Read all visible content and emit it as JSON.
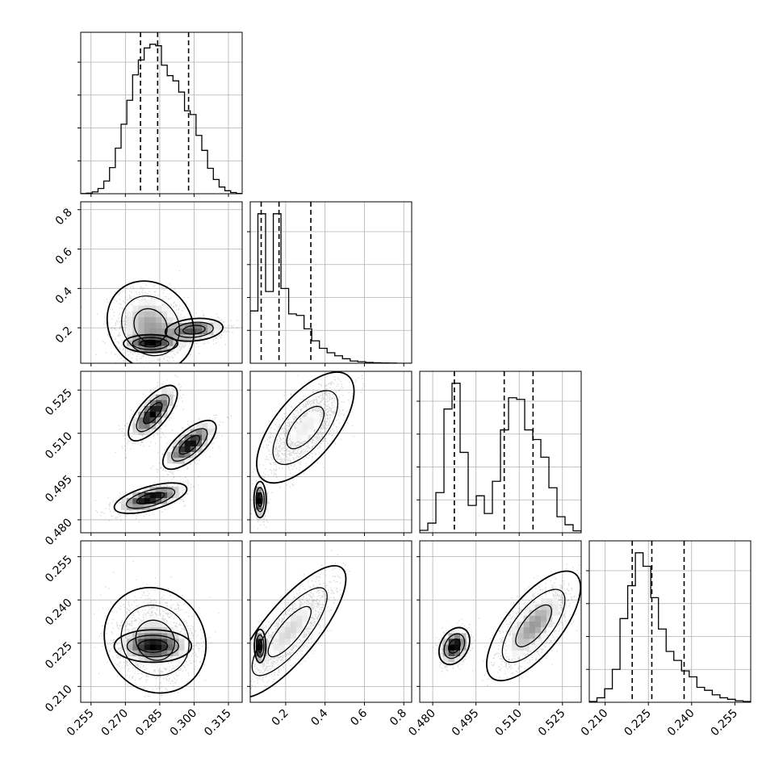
{
  "chart_data": {
    "type": "corner",
    "grid": true,
    "quantile_lines": "dashed",
    "params": [
      {
        "ticks": [
          0.255,
          0.27,
          0.285,
          0.3,
          0.315
        ],
        "tick_labels": [
          "0.255",
          "0.270",
          "0.285",
          "0.300",
          "0.315"
        ],
        "range": [
          0.2505,
          0.321
        ],
        "quantiles": [
          0.2766,
          0.2841,
          0.2976
        ],
        "hist_bins": [
          0.001,
          0.004,
          0.012,
          0.035,
          0.085,
          0.175,
          0.305,
          0.465,
          0.625,
          0.795,
          0.895,
          0.975,
          1.0,
          0.99,
          0.86,
          0.79,
          0.755,
          0.68,
          0.555,
          0.53,
          0.39,
          0.29,
          0.17,
          0.095,
          0.045,
          0.02,
          0.008,
          0.002
        ]
      },
      {
        "ticks": [
          0.2,
          0.4,
          0.6,
          0.8
        ],
        "tick_labels": [
          "0.2",
          "0.4",
          "0.6",
          "0.8"
        ],
        "range": [
          0.02,
          0.84
        ],
        "quantiles": [
          0.0755,
          0.1662,
          0.3278
        ],
        "hist_bins": [
          0.35,
          1.0,
          0.48,
          1.0,
          0.5,
          0.33,
          0.32,
          0.23,
          0.15,
          0.1,
          0.07,
          0.05,
          0.03,
          0.015,
          0.01,
          0.005,
          0.003,
          0.002,
          0.001,
          0.0,
          0.0
        ]
      },
      {
        "ticks": [
          0.48,
          0.495,
          0.51,
          0.525
        ],
        "tick_labels": [
          "0.480",
          "0.495",
          "0.510",
          "0.525"
        ],
        "range": [
          0.4755,
          0.5315
        ],
        "quantiles": [
          0.4875,
          0.5048,
          0.5148
        ],
        "hist_bins": [
          0.015,
          0.06,
          0.25,
          0.77,
          0.93,
          0.5,
          0.17,
          0.23,
          0.12,
          0.32,
          0.64,
          0.84,
          0.83,
          0.64,
          0.58,
          0.47,
          0.28,
          0.1,
          0.05,
          0.012
        ]
      },
      {
        "ticks": [
          0.21,
          0.225,
          0.24,
          0.255
        ],
        "tick_labels": [
          "0.210",
          "0.225",
          "0.240",
          "0.255"
        ],
        "range": [
          0.2045,
          0.2605
        ],
        "quantiles": [
          0.2194,
          0.2262,
          0.2374
        ],
        "hist_bins": [
          0.005,
          0.03,
          0.09,
          0.22,
          0.56,
          0.78,
          1.0,
          0.91,
          0.7,
          0.49,
          0.34,
          0.28,
          0.21,
          0.17,
          0.1,
          0.08,
          0.05,
          0.03,
          0.02,
          0.01,
          0.005
        ]
      }
    ],
    "scatter_clusters": {
      "1_0": [
        {
          "mx": 0.281,
          "my": 0.21,
          "sx": 0.0075,
          "sy": 0.09,
          "rho": -0.15,
          "w": 0.55
        },
        {
          "mx": 0.3,
          "my": 0.19,
          "sx": 0.0065,
          "sy": 0.03,
          "rho": 0.2,
          "w": 0.25
        },
        {
          "mx": 0.281,
          "my": 0.12,
          "sx": 0.0065,
          "sy": 0.025,
          "rho": 0.0,
          "w": 0.2
        }
      ],
      "2_0": [
        {
          "mx": 0.282,
          "my": 0.517,
          "sx": 0.005,
          "sy": 0.0045,
          "rho": 0.7,
          "w": 0.34
        },
        {
          "mx": 0.298,
          "my": 0.506,
          "sx": 0.0055,
          "sy": 0.004,
          "rho": 0.7,
          "w": 0.33
        },
        {
          "mx": 0.281,
          "my": 0.4875,
          "sx": 0.0075,
          "sy": 0.0025,
          "rho": 0.6,
          "w": 0.33
        }
      ],
      "2_1": [
        {
          "mx": 0.3,
          "my": 0.512,
          "sx": 0.09,
          "sy": 0.007,
          "rho": 0.65,
          "w": 0.68
        },
        {
          "mx": 0.07,
          "my": 0.487,
          "sx": 0.015,
          "sy": 0.003,
          "rho": 0.0,
          "w": 0.32
        }
      ],
      "3_0": [
        {
          "mx": 0.283,
          "my": 0.226,
          "sx": 0.0085,
          "sy": 0.007,
          "rho": -0.1,
          "w": 0.6
        },
        {
          "mx": 0.282,
          "my": 0.224,
          "sx": 0.0075,
          "sy": 0.0025,
          "rho": 0.0,
          "w": 0.4
        }
      ],
      "3_1": [
        {
          "mx": 0.22,
          "my": 0.229,
          "sx": 0.1,
          "sy": 0.008,
          "rho": 0.8,
          "w": 0.75
        },
        {
          "mx": 0.07,
          "my": 0.224,
          "sx": 0.015,
          "sy": 0.003,
          "rho": 0.0,
          "w": 0.25
        }
      ],
      "3_2": [
        {
          "mx": 0.515,
          "my": 0.231,
          "sx": 0.006,
          "sy": 0.007,
          "rho": 0.7,
          "w": 0.66
        },
        {
          "mx": 0.4875,
          "my": 0.224,
          "sx": 0.0025,
          "sy": 0.003,
          "rho": 0.3,
          "w": 0.34
        }
      ]
    }
  }
}
